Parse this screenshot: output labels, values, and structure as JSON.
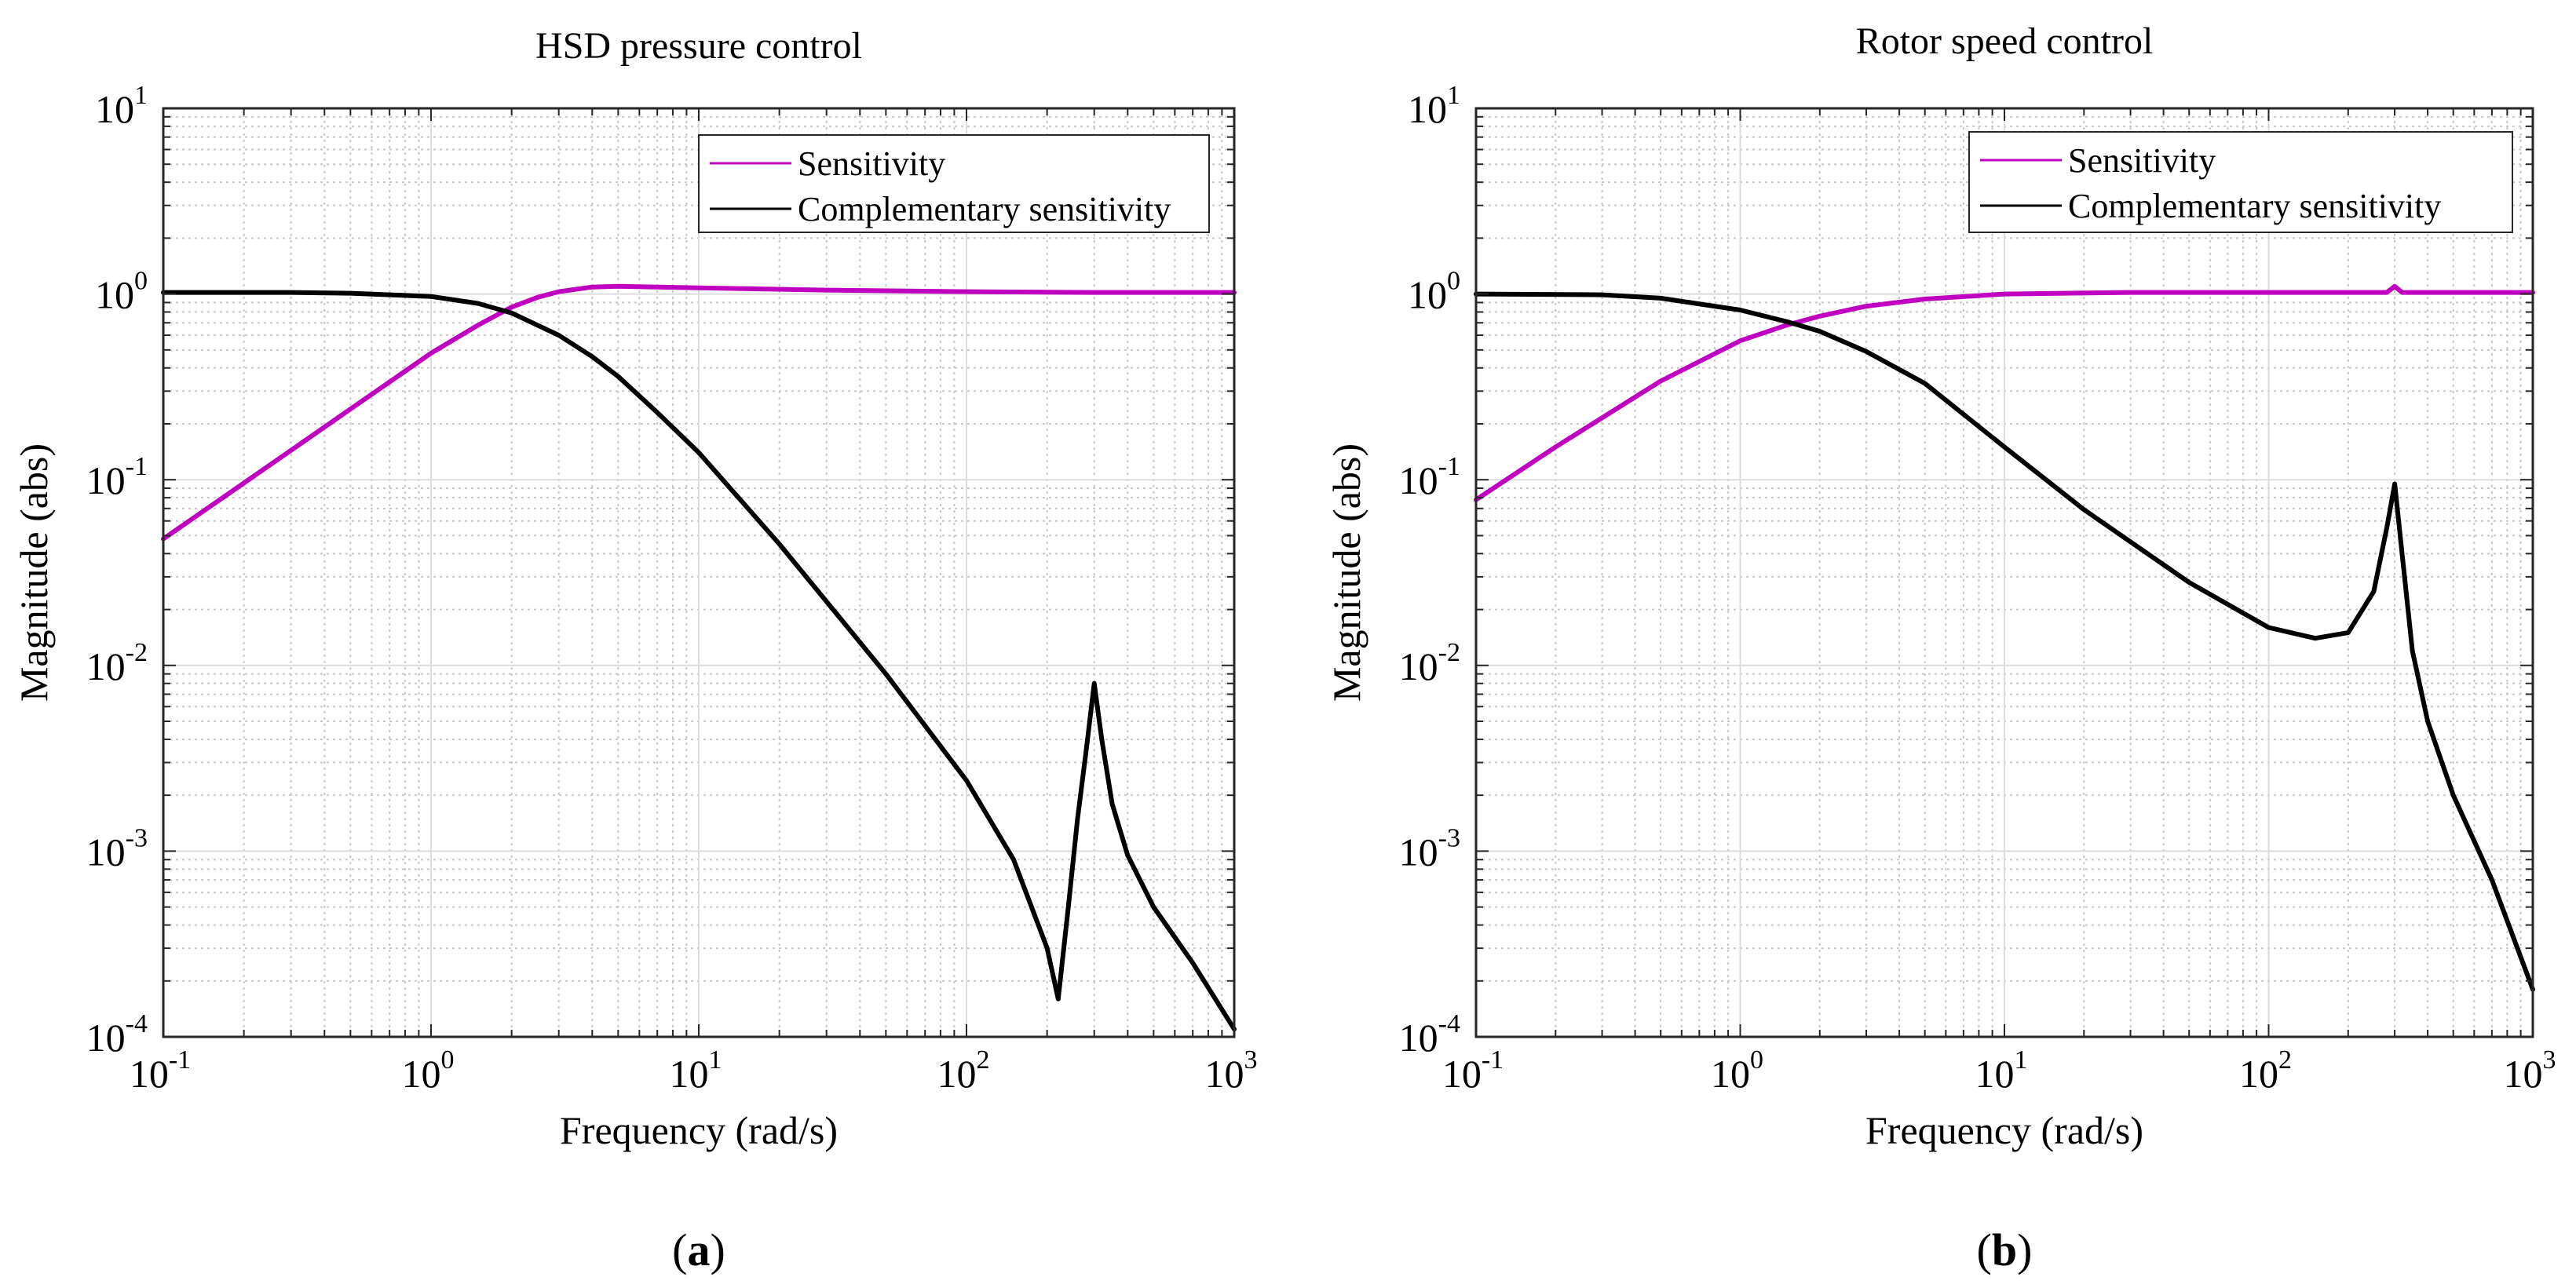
{
  "chart_data": [
    {
      "type": "line",
      "scale": "loglog",
      "title": "HSD pressure control",
      "xlabel": "Frequency (rad/s)",
      "ylabel": "Magnitude (abs)",
      "xlim": [
        0.1,
        1000
      ],
      "ylim": [
        0.0001,
        10
      ],
      "grid": true,
      "legend": "top-right",
      "caption": "a",
      "xticks": [
        {
          "base": "10",
          "exp": "-1"
        },
        {
          "base": "10",
          "exp": "0"
        },
        {
          "base": "10",
          "exp": "1"
        },
        {
          "base": "10",
          "exp": "2"
        },
        {
          "base": "10",
          "exp": "3"
        }
      ],
      "yticks": [
        {
          "base": "10",
          "exp": "-4"
        },
        {
          "base": "10",
          "exp": "-3"
        },
        {
          "base": "10",
          "exp": "-2"
        },
        {
          "base": "10",
          "exp": "-1"
        },
        {
          "base": "10",
          "exp": "0"
        },
        {
          "base": "10",
          "exp": "1"
        }
      ],
      "series": [
        {
          "name": "Sensitivity",
          "color": "#c000c0",
          "x": [
            0.1,
            0.2,
            0.5,
            1,
            1.5,
            2,
            2.5,
            3,
            4,
            5,
            7,
            10,
            30,
            100,
            300,
            1000
          ],
          "y": [
            0.048,
            0.096,
            0.24,
            0.48,
            0.68,
            0.85,
            0.96,
            1.03,
            1.09,
            1.1,
            1.09,
            1.08,
            1.05,
            1.03,
            1.02,
            1.02
          ]
        },
        {
          "name": "Complementary sensitivity",
          "color": "#000000",
          "x": [
            0.1,
            0.3,
            0.5,
            1,
            1.5,
            2,
            3,
            4,
            5,
            7,
            10,
            20,
            50,
            100,
            150,
            200,
            220,
            240,
            260,
            280,
            300,
            320,
            350,
            400,
            500,
            700,
            1000
          ],
          "y": [
            1.02,
            1.02,
            1.01,
            0.97,
            0.89,
            0.79,
            0.6,
            0.46,
            0.36,
            0.23,
            0.14,
            0.045,
            0.009,
            0.0024,
            0.0009,
            0.0003,
            0.00016,
            0.0005,
            0.0015,
            0.0035,
            0.008,
            0.004,
            0.0018,
            0.00095,
            0.0005,
            0.00025,
            0.00011
          ]
        }
      ]
    },
    {
      "type": "line",
      "scale": "loglog",
      "title": "Rotor speed control",
      "xlabel": "Frequency (rad/s)",
      "ylabel": "Magnitude (abs)",
      "xlim": [
        0.1,
        1000
      ],
      "ylim": [
        0.0001,
        10
      ],
      "grid": true,
      "legend": "top-right",
      "caption": "b",
      "xticks": [
        {
          "base": "10",
          "exp": "-1"
        },
        {
          "base": "10",
          "exp": "0"
        },
        {
          "base": "10",
          "exp": "1"
        },
        {
          "base": "10",
          "exp": "2"
        },
        {
          "base": "10",
          "exp": "3"
        }
      ],
      "yticks": [
        {
          "base": "10",
          "exp": "-4"
        },
        {
          "base": "10",
          "exp": "-3"
        },
        {
          "base": "10",
          "exp": "-2"
        },
        {
          "base": "10",
          "exp": "-1"
        },
        {
          "base": "10",
          "exp": "0"
        },
        {
          "base": "10",
          "exp": "1"
        }
      ],
      "series": [
        {
          "name": "Sensitivity",
          "color": "#c000c0",
          "x": [
            0.1,
            0.2,
            0.5,
            1,
            1.5,
            2,
            3,
            5,
            10,
            30,
            100,
            280,
            300,
            320,
            350,
            1000
          ],
          "y": [
            0.078,
            0.15,
            0.34,
            0.56,
            0.68,
            0.76,
            0.86,
            0.94,
            1.0,
            1.02,
            1.02,
            1.02,
            1.1,
            1.02,
            1.02,
            1.02
          ]
        },
        {
          "name": "Complementary sensitivity",
          "color": "#000000",
          "x": [
            0.1,
            0.3,
            0.5,
            1,
            1.5,
            2,
            3,
            5,
            10,
            20,
            50,
            100,
            150,
            200,
            250,
            280,
            300,
            320,
            350,
            400,
            500,
            700,
            1000
          ],
          "y": [
            1.0,
            0.99,
            0.95,
            0.82,
            0.71,
            0.63,
            0.49,
            0.33,
            0.15,
            0.069,
            0.028,
            0.016,
            0.014,
            0.015,
            0.025,
            0.055,
            0.095,
            0.04,
            0.012,
            0.005,
            0.002,
            0.0007,
            0.00018
          ]
        }
      ]
    }
  ]
}
